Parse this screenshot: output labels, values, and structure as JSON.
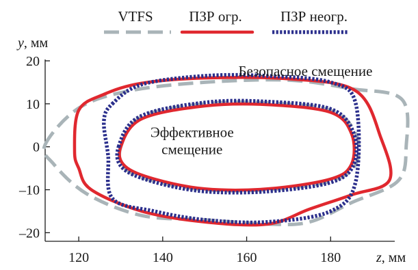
{
  "chart_data": {
    "type": "line",
    "title": "",
    "ylabel": "y, мм",
    "xlabel": "z, мм",
    "xlim": [
      112,
      200
    ],
    "ylim": [
      -22,
      20
    ],
    "xticks": [
      120,
      140,
      160,
      180
    ],
    "yticks": [
      -20,
      -10,
      0,
      10,
      20
    ],
    "grid": false,
    "legend_position": "top",
    "legend": [
      {
        "name": "VTFS",
        "color": "#a9b4b8",
        "style": "dashed"
      },
      {
        "name": "ПЗР огр.",
        "color": "#e0282f",
        "style": "solid"
      },
      {
        "name": "ПЗР неогр.",
        "color": "#2b2f8c",
        "style": "dotted"
      }
    ],
    "annotations": [
      {
        "text": "Безопасное смещение",
        "x": 174,
        "y": 16.5
      },
      {
        "text": "Эффективное",
        "x": 147,
        "y": 2.3
      },
      {
        "text": "смещение",
        "x": 147,
        "y": -1.7
      }
    ],
    "series": [
      {
        "name": "VTFS",
        "group": "outer",
        "color": "#a9b4b8",
        "style": "dashed",
        "closed": true,
        "points": [
          [
            112,
            0.5
          ],
          [
            120,
            9
          ],
          [
            132,
            13
          ],
          [
            150,
            15
          ],
          [
            170,
            15.5
          ],
          [
            185,
            13.5
          ],
          [
            197,
            11
          ],
          [
            198,
            0
          ],
          [
            196,
            -8
          ],
          [
            185,
            -13
          ],
          [
            175,
            -17.5
          ],
          [
            165,
            -18
          ],
          [
            150,
            -17
          ],
          [
            135,
            -16
          ],
          [
            122,
            -11
          ],
          [
            114,
            -4
          ]
        ]
      },
      {
        "name": "ПЗР огр.",
        "group": "outer",
        "color": "#e0282f",
        "style": "solid",
        "closed": true,
        "points": [
          [
            119,
            -1
          ],
          [
            120,
            8.5
          ],
          [
            126,
            12.2
          ],
          [
            135,
            14.8
          ],
          [
            150,
            16
          ],
          [
            170,
            15.8
          ],
          [
            186,
            13
          ],
          [
            192,
            2
          ],
          [
            194,
            -7.8
          ],
          [
            185,
            -11.2
          ],
          [
            175,
            -14.5
          ],
          [
            165,
            -18
          ],
          [
            150,
            -17.5
          ],
          [
            135,
            -15
          ],
          [
            123,
            -10
          ],
          [
            120,
            -5
          ]
        ]
      },
      {
        "name": "ПЗР неогр.",
        "group": "outer",
        "color": "#2b2f8c",
        "style": "dotted",
        "closed": true,
        "points": [
          [
            128,
            10
          ],
          [
            135,
            14.5
          ],
          [
            150,
            16.5
          ],
          [
            165,
            16.5
          ],
          [
            180,
            15
          ],
          [
            186,
            10
          ],
          [
            186,
            -8
          ],
          [
            180,
            -15
          ],
          [
            165,
            -17.5
          ],
          [
            150,
            -17
          ],
          [
            138,
            -15
          ],
          [
            128,
            -12
          ],
          [
            127,
            -2
          ],
          [
            126,
            6
          ]
        ]
      },
      {
        "name": "VTFS",
        "group": "inner",
        "color": "#a9b4b8",
        "style": "dashed",
        "closed": true,
        "points": [
          [
            130,
            0
          ],
          [
            135,
            7
          ],
          [
            150,
            10
          ],
          [
            165,
            10.2
          ],
          [
            180,
            8.5
          ],
          [
            186,
            3
          ],
          [
            186,
            -4
          ],
          [
            180,
            -8
          ],
          [
            165,
            -10
          ],
          [
            150,
            -10
          ],
          [
            138,
            -8
          ],
          [
            131,
            -5
          ]
        ]
      },
      {
        "name": "ПЗР огр.",
        "group": "inner",
        "color": "#e0282f",
        "style": "solid",
        "closed": true,
        "points": [
          [
            130,
            0
          ],
          [
            135,
            6.5
          ],
          [
            150,
            9.5
          ],
          [
            165,
            9.8
          ],
          [
            180,
            8
          ],
          [
            185,
            3
          ],
          [
            185,
            -4
          ],
          [
            180,
            -7.5
          ],
          [
            165,
            -9.8
          ],
          [
            150,
            -9.8
          ],
          [
            138,
            -7.5
          ],
          [
            131,
            -4.5
          ]
        ]
      },
      {
        "name": "ПЗР неогр.",
        "group": "inner",
        "color": "#2b2f8c",
        "style": "dotted",
        "closed": true,
        "points": [
          [
            129.5,
            0
          ],
          [
            134.5,
            7
          ],
          [
            150,
            10.3
          ],
          [
            165,
            10.5
          ],
          [
            180,
            8.8
          ],
          [
            185.5,
            3.2
          ],
          [
            185.5,
            -4.2
          ],
          [
            180,
            -8.3
          ],
          [
            165,
            -10.4
          ],
          [
            150,
            -10.4
          ],
          [
            138,
            -8.2
          ],
          [
            130.5,
            -5
          ]
        ]
      }
    ]
  }
}
